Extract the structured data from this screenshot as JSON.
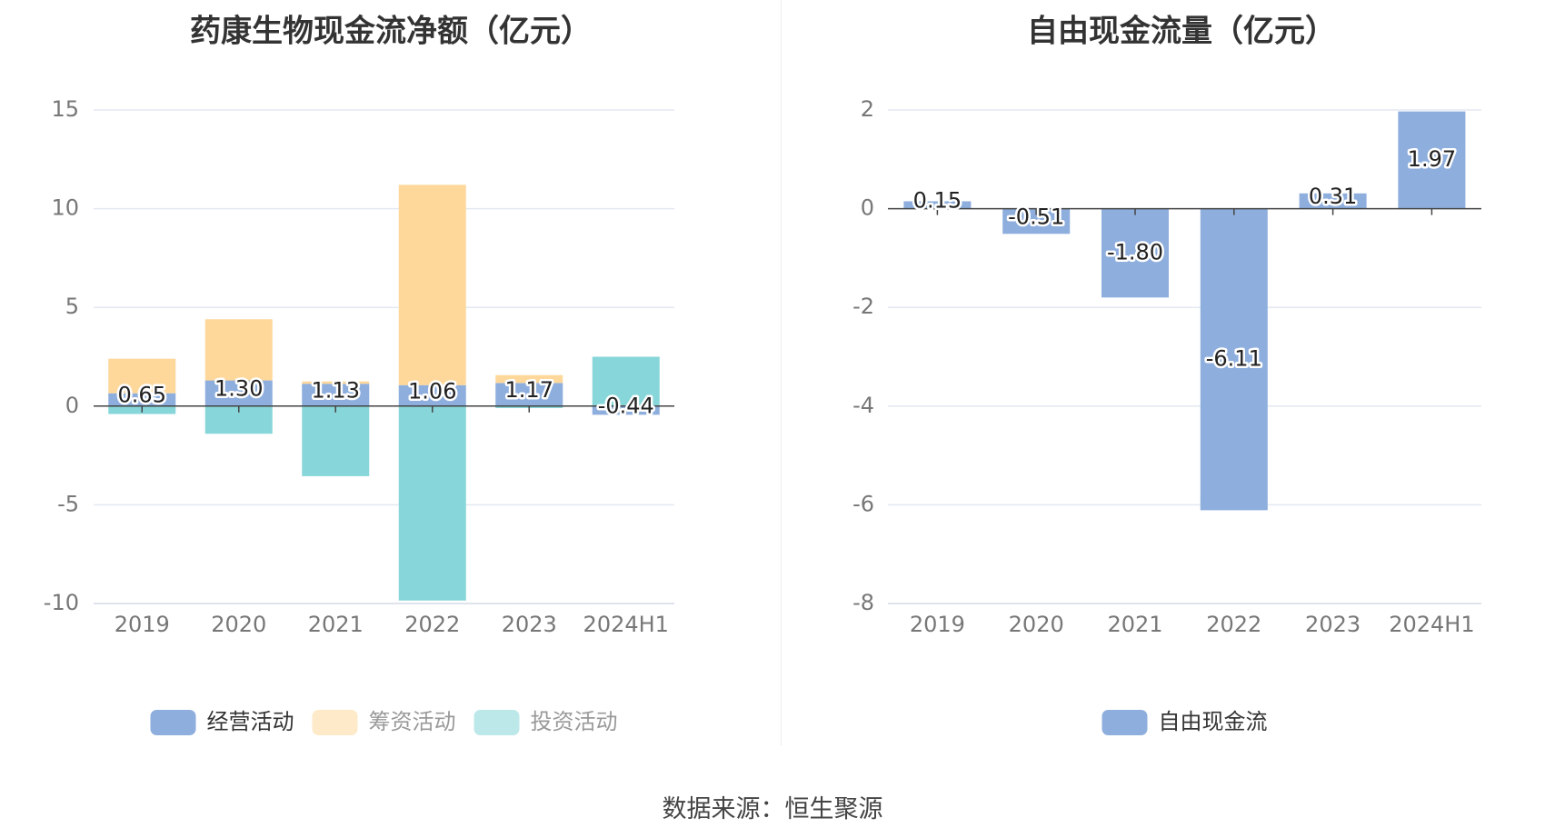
{
  "source_text": "数据来源：恒生聚源",
  "chart_data": [
    {
      "type": "bar",
      "stacked": true,
      "title": "药康生物现金流净额（亿元）",
      "categories": [
        "2019",
        "2020",
        "2021",
        "2022",
        "2023",
        "2024H1"
      ],
      "ylim": [
        -10,
        15
      ],
      "yticks": [
        15,
        10,
        5,
        0,
        -5,
        -10
      ],
      "grid": true,
      "legend_position": "bottom",
      "series": [
        {
          "name": "经营活动",
          "color": "#8eaedd",
          "values": [
            0.65,
            1.3,
            1.13,
            1.06,
            1.17,
            -0.44
          ],
          "labels": [
            "0.65",
            "1.30",
            "1.13",
            "1.06",
            "1.17",
            "-0.44"
          ]
        },
        {
          "name": "筹资活动",
          "color": "#fed89b",
          "values": [
            1.75,
            3.1,
            0.12,
            10.15,
            0.4,
            0.0
          ]
        },
        {
          "name": "投资活动",
          "color": "#87d6d9",
          "values": [
            -0.4,
            -1.4,
            -3.55,
            -9.85,
            -0.1,
            2.5
          ]
        }
      ]
    },
    {
      "type": "bar",
      "title": "自由现金流量（亿元）",
      "categories": [
        "2019",
        "2020",
        "2021",
        "2022",
        "2023",
        "2024H1"
      ],
      "ylim": [
        -8,
        2
      ],
      "yticks": [
        2,
        0,
        -2,
        -4,
        -6,
        -8
      ],
      "grid": true,
      "legend_position": "bottom",
      "series": [
        {
          "name": "自由现金流",
          "color": "#8eaedd",
          "values": [
            0.15,
            -0.51,
            -1.8,
            -6.11,
            0.31,
            1.97
          ],
          "labels": [
            "0.15",
            "-0.51",
            "-1.80",
            "-6.11",
            "0.31",
            "1.97"
          ]
        }
      ]
    }
  ]
}
